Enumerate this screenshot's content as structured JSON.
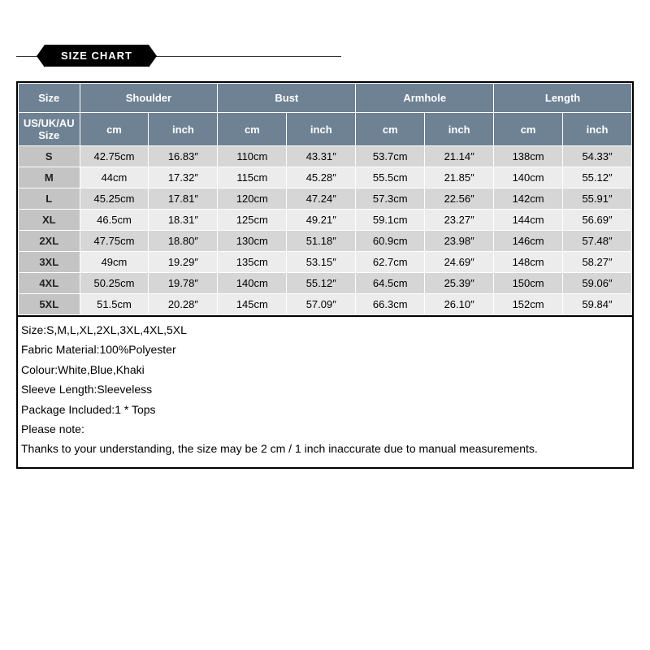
{
  "banner": {
    "title": "SIZE CHART"
  },
  "table": {
    "header1": {
      "size": "Size",
      "groups": [
        "Shoulder",
        "Bust",
        "Armhole",
        "Length"
      ]
    },
    "header2": {
      "size_sub": "US/UK/AU Size",
      "units": [
        "cm",
        "inch",
        "cm",
        "inch",
        "cm",
        "inch",
        "cm",
        "inch"
      ]
    },
    "rows": [
      {
        "size": "S",
        "cells": [
          "42.75cm",
          "16.83″",
          "110cm",
          "43.31″",
          "53.7cm",
          "21.14″",
          "138cm",
          "54.33″"
        ]
      },
      {
        "size": "M",
        "cells": [
          "44cm",
          "17.32″",
          "115cm",
          "45.28″",
          "55.5cm",
          "21.85″",
          "140cm",
          "55.12″"
        ]
      },
      {
        "size": "L",
        "cells": [
          "45.25cm",
          "17.81″",
          "120cm",
          "47.24″",
          "57.3cm",
          "22.56″",
          "142cm",
          "55.91″"
        ]
      },
      {
        "size": "XL",
        "cells": [
          "46.5cm",
          "18.31″",
          "125cm",
          "49.21″",
          "59.1cm",
          "23.27″",
          "144cm",
          "56.69″"
        ]
      },
      {
        "size": "2XL",
        "cells": [
          "47.75cm",
          "18.80″",
          "130cm",
          "51.18″",
          "60.9cm",
          "23.98″",
          "146cm",
          "57.48″"
        ]
      },
      {
        "size": "3XL",
        "cells": [
          "49cm",
          "19.29″",
          "135cm",
          "53.15″",
          "62.7cm",
          "24.69″",
          "148cm",
          "58.27″"
        ]
      },
      {
        "size": "4XL",
        "cells": [
          "50.25cm",
          "19.78″",
          "140cm",
          "55.12″",
          "64.5cm",
          "25.39″",
          "150cm",
          "59.06″"
        ]
      },
      {
        "size": "5XL",
        "cells": [
          "51.5cm",
          "20.28″",
          "145cm",
          "57.09″",
          "66.3cm",
          "26.10″",
          "152cm",
          "59.84″"
        ]
      }
    ]
  },
  "notes": [
    "Size:S,M,L,XL,2XL,3XL,4XL,5XL",
    "Fabric Material:100%Polyester",
    "Colour:White,Blue,Khaki",
    "Sleeve Length:Sleeveless",
    "Package Included:1 * Tops",
    "Please note:",
    "Thanks to your understanding, the size may be 2 cm / 1 inch inaccurate due to manual measurements."
  ],
  "style": {
    "header_bg": "#6e8294",
    "row_even_bg": "#d6d6d6",
    "row_odd_bg": "#ececec",
    "size_col_bg": "#c4c4c4",
    "border_color": "#ffffff",
    "outer_border": "#000000",
    "col_widths_pct": [
      10,
      11.25,
      11.25,
      11.25,
      11.25,
      11.25,
      11.25,
      11.25,
      11.25
    ]
  }
}
